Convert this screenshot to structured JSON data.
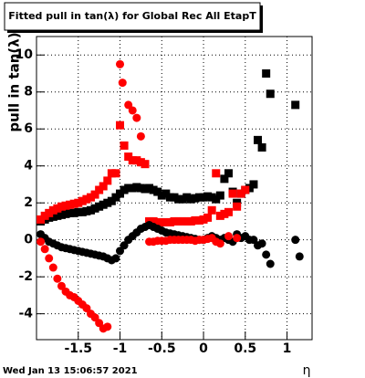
{
  "chart_data": {
    "type": "scatter",
    "title": "Fitted pull in tan(λ) for Global Rec All EtapT",
    "y_label": "pull in tan(λ)",
    "x_label": "η",
    "timestamp": "Wed Jan 13 15:06:57 2021",
    "xlim": [
      -2.0,
      1.3
    ],
    "ylim": [
      -5.4,
      11
    ],
    "xticks": [
      -1.5,
      -1,
      -0.5,
      0,
      0.5,
      1
    ],
    "yticks": [
      -4,
      -2,
      0,
      2,
      4,
      6,
      8,
      10
    ],
    "grid": true,
    "series": [
      {
        "color": "#000000",
        "marker": "square",
        "x": [
          -1.95,
          -1.9,
          -1.85,
          -1.8,
          -1.75,
          -1.7,
          -1.65,
          -1.6,
          -1.55,
          -1.5,
          -1.45,
          -1.4,
          -1.35,
          -1.3,
          -1.25,
          -1.2,
          -1.15,
          -1.1,
          -1.05,
          -1.0,
          -0.95,
          -0.9,
          -0.85,
          -0.8,
          -0.75,
          -0.7,
          -0.65,
          -0.6,
          -0.55,
          -0.5,
          -0.45,
          -0.4,
          -0.35,
          -0.3,
          -0.25,
          -0.2,
          -0.15,
          -0.1,
          -0.05,
          0,
          0.05,
          0.1,
          0.15,
          0.2,
          0.25,
          0.3,
          0.35,
          0.4,
          0.45,
          0.5,
          0.55,
          0.6,
          0.65,
          0.7,
          0.75,
          0.8,
          1.1
        ],
        "values": [
          1.0,
          1.1,
          1.2,
          1.25,
          1.3,
          1.35,
          1.4,
          1.45,
          1.45,
          1.5,
          1.5,
          1.55,
          1.6,
          1.7,
          1.8,
          1.9,
          2.0,
          2.1,
          2.3,
          2.5,
          2.7,
          2.8,
          2.8,
          2.85,
          2.8,
          2.75,
          2.8,
          2.7,
          2.6,
          2.4,
          2.5,
          2.3,
          2.3,
          2.2,
          2.2,
          2.3,
          2.2,
          2.25,
          2.3,
          2.3,
          2.35,
          2.3,
          2.2,
          2.4,
          3.3,
          3.6,
          2.6,
          2.0,
          2.5,
          2.7,
          2.8,
          3.0,
          5.4,
          5.0,
          9.0,
          7.9,
          7.3
        ]
      },
      {
        "color": "#ff0000",
        "marker": "square",
        "x": [
          -1.95,
          -1.9,
          -1.85,
          -1.8,
          -1.75,
          -1.7,
          -1.65,
          -1.6,
          -1.55,
          -1.5,
          -1.45,
          -1.4,
          -1.35,
          -1.3,
          -1.25,
          -1.2,
          -1.15,
          -1.1,
          -1.05,
          -1.0,
          -0.95,
          -0.9,
          -0.85,
          -0.8,
          -0.75,
          -0.7,
          -0.65,
          -0.6,
          -0.55,
          -0.5,
          -0.45,
          -0.4,
          -0.35,
          -0.3,
          -0.25,
          -0.2,
          -0.15,
          -0.1,
          -0.05,
          0,
          0.05,
          0.1,
          0.15,
          0.2,
          0.25,
          0.3,
          0.35,
          0.4,
          0.45,
          0.5
        ],
        "values": [
          1.1,
          1.3,
          1.45,
          1.6,
          1.7,
          1.8,
          1.85,
          1.9,
          1.95,
          2.0,
          2.1,
          2.2,
          2.3,
          2.45,
          2.7,
          2.9,
          3.2,
          3.6,
          3.6,
          6.2,
          5.1,
          4.5,
          4.3,
          4.3,
          4.2,
          4.1,
          1.0,
          1.0,
          0.95,
          0.95,
          0.95,
          0.95,
          1.0,
          1.0,
          1.0,
          1.0,
          1.0,
          1.05,
          1.05,
          1.1,
          1.2,
          1.6,
          3.6,
          1.3,
          1.4,
          1.5,
          2.5,
          1.8,
          2.5,
          2.7
        ]
      },
      {
        "color": "#000000",
        "marker": "circle",
        "x": [
          -1.95,
          -1.9,
          -1.85,
          -1.8,
          -1.75,
          -1.7,
          -1.65,
          -1.6,
          -1.55,
          -1.5,
          -1.45,
          -1.4,
          -1.35,
          -1.3,
          -1.25,
          -1.2,
          -1.15,
          -1.1,
          -1.05,
          -1.0,
          -0.95,
          -0.9,
          -0.85,
          -0.8,
          -0.75,
          -0.7,
          -0.65,
          -0.6,
          -0.55,
          -0.5,
          -0.45,
          -0.4,
          -0.35,
          -0.3,
          -0.25,
          -0.2,
          -0.15,
          -0.1,
          -0.05,
          0,
          0.05,
          0.1,
          0.15,
          0.2,
          0.25,
          0.3,
          0.35,
          0.4,
          0.45,
          0.5,
          0.55,
          0.6,
          0.65,
          0.7,
          0.75,
          0.8,
          1.1,
          1.15
        ],
        "values": [
          0.3,
          0.1,
          -0.1,
          -0.2,
          -0.3,
          -0.4,
          -0.45,
          -0.5,
          -0.55,
          -0.6,
          -0.65,
          -0.7,
          -0.75,
          -0.8,
          -0.85,
          -0.9,
          -1.0,
          -1.1,
          -1.0,
          -0.6,
          -0.3,
          0.0,
          0.2,
          0.4,
          0.6,
          0.7,
          0.8,
          0.7,
          0.6,
          0.5,
          0.4,
          0.35,
          0.3,
          0.25,
          0.2,
          0.15,
          0.1,
          0.05,
          0.0,
          0.0,
          0.1,
          0.2,
          0.1,
          0.0,
          0.1,
          0.0,
          -0.1,
          0.3,
          0.1,
          0.2,
          0.0,
          0.0,
          -0.3,
          -0.2,
          -0.8,
          -1.3,
          0.0,
          -0.9
        ]
      },
      {
        "color": "#ff0000",
        "marker": "circle",
        "x": [
          -1.95,
          -1.9,
          -1.85,
          -1.8,
          -1.75,
          -1.7,
          -1.65,
          -1.6,
          -1.55,
          -1.5,
          -1.45,
          -1.4,
          -1.35,
          -1.3,
          -1.25,
          -1.2,
          -1.15,
          -1.0,
          -0.97,
          -0.9,
          -0.85,
          -0.8,
          -0.75,
          -0.65,
          -0.6,
          -0.55,
          -0.5,
          -0.45,
          -0.4,
          -0.35,
          -0.3,
          -0.25,
          -0.2,
          -0.15,
          -0.1,
          -0.05,
          0,
          0.05,
          0.1,
          0.15,
          0.2,
          0.3,
          0.4
        ],
        "values": [
          -0.1,
          -0.5,
          -1.0,
          -1.5,
          -2.1,
          -2.5,
          -2.8,
          -3.0,
          -3.1,
          -3.3,
          -3.5,
          -3.7,
          -4.0,
          -4.2,
          -4.5,
          -4.8,
          -4.7,
          9.5,
          8.5,
          7.3,
          7.0,
          6.6,
          5.6,
          -0.1,
          -0.1,
          -0.05,
          -0.05,
          -0.05,
          0,
          0,
          0,
          0,
          0,
          0,
          -0.05,
          0,
          0,
          0.05,
          0.1,
          -0.1,
          -0.2,
          0.2,
          0.1
        ]
      }
    ]
  }
}
